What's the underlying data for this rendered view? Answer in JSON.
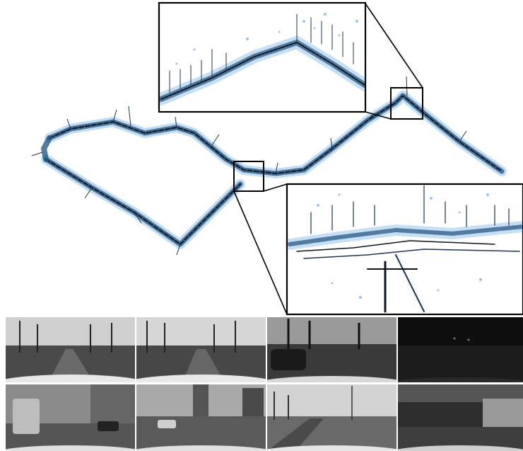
{
  "figure": {
    "main_map": {
      "point_color_primary": "#1f3a5a",
      "point_color_secondary": "#5aa0e0",
      "point_color_dark": "#0a0f16"
    },
    "insets": [
      {
        "name": "top-zoom-inset",
        "frame_color": "#000000"
      },
      {
        "name": "bottom-right-zoom-inset",
        "frame_color": "#000000"
      }
    ],
    "camera_frames": [
      {
        "scene": "tree-lined-road-day-1"
      },
      {
        "scene": "tree-lined-road-day-2"
      },
      {
        "scene": "parked-cars-evening"
      },
      {
        "scene": "night-dark-road"
      },
      {
        "scene": "tram-city-street"
      },
      {
        "scene": "intersection-cloudy"
      },
      {
        "scene": "open-field-power-line"
      },
      {
        "scene": "parking-garage"
      }
    ]
  }
}
